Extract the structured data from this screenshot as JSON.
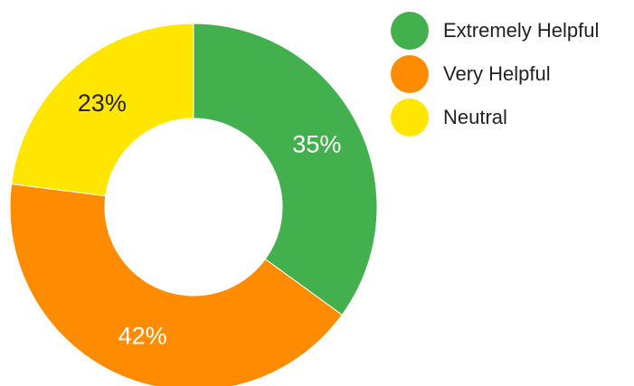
{
  "chart_data": {
    "type": "pie",
    "donut": true,
    "categories": [
      "Extremely Helpful",
      "Very Helpful",
      "Neutral"
    ],
    "values": [
      35,
      42,
      23
    ],
    "value_labels": [
      "35%",
      "42%",
      "23%"
    ],
    "colors": [
      "#43b04e",
      "#ff8c00",
      "#ffe600"
    ],
    "label_colors": [
      "#ffffff",
      "#ffffff",
      "#222222"
    ],
    "start_angle_deg": 0,
    "direction": "clockwise",
    "legend_position": "right"
  }
}
